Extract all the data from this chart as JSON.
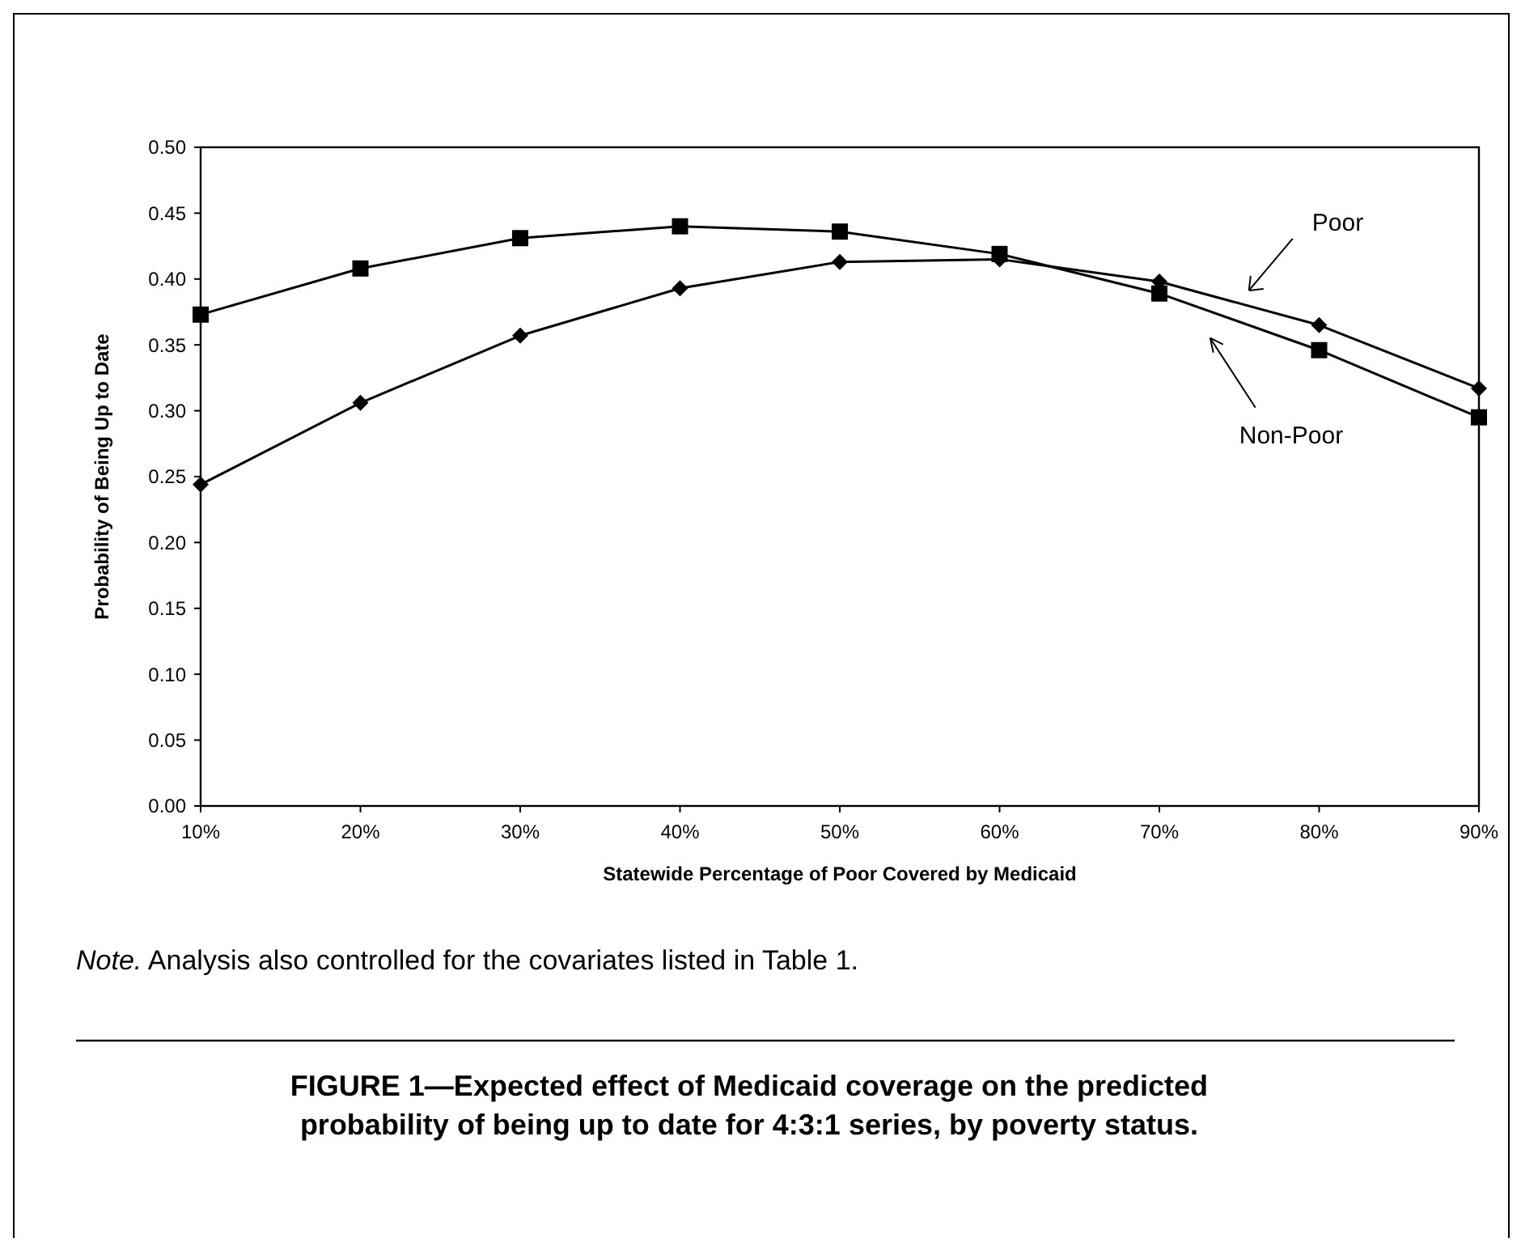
{
  "chart_data": {
    "type": "line",
    "title": "FIGURE 1—Expected effect of Medicaid coverage on the predicted probability of being up to date for 4:3:1 series, by poverty status.",
    "xlabel": "Statewide Percentage of Poor Covered by Medicaid",
    "ylabel": "Probability of Being Up to Date",
    "categories": [
      "10%",
      "20%",
      "30%",
      "40%",
      "50%",
      "60%",
      "70%",
      "80%",
      "90%"
    ],
    "series": [
      {
        "name": "Non-Poor",
        "color": "#000000",
        "marker": "square",
        "values": [
          0.373,
          0.408,
          0.431,
          0.44,
          0.436,
          0.419,
          0.389,
          0.346,
          0.295
        ]
      },
      {
        "name": "Poor",
        "color": "#000000",
        "marker": "diamond",
        "values": [
          0.244,
          0.306,
          0.357,
          0.393,
          0.413,
          0.415,
          0.398,
          0.365,
          0.317
        ]
      }
    ],
    "ylim": [
      0,
      0.5
    ],
    "yticks": [
      {
        "value": 0,
        "label": "0.00"
      },
      {
        "value": 0.05,
        "label": "0.05"
      },
      {
        "value": 0.1,
        "label": "0.10"
      },
      {
        "value": 0.15,
        "label": "0.15"
      },
      {
        "value": 0.2,
        "label": "0.20"
      },
      {
        "value": 0.25,
        "label": "0.25"
      },
      {
        "value": 0.3,
        "label": "0.30"
      },
      {
        "value": 0.35,
        "label": "0.35"
      },
      {
        "value": 0.4,
        "label": "0.40"
      },
      {
        "value": 0.45,
        "label": "0.45"
      },
      {
        "value": 0.5,
        "label": "0.50"
      }
    ],
    "grid": false,
    "legend": false,
    "line_style": "solid",
    "annotations": [
      "Note. Analysis also controlled for the covariates listed in Table 1."
    ]
  }
}
